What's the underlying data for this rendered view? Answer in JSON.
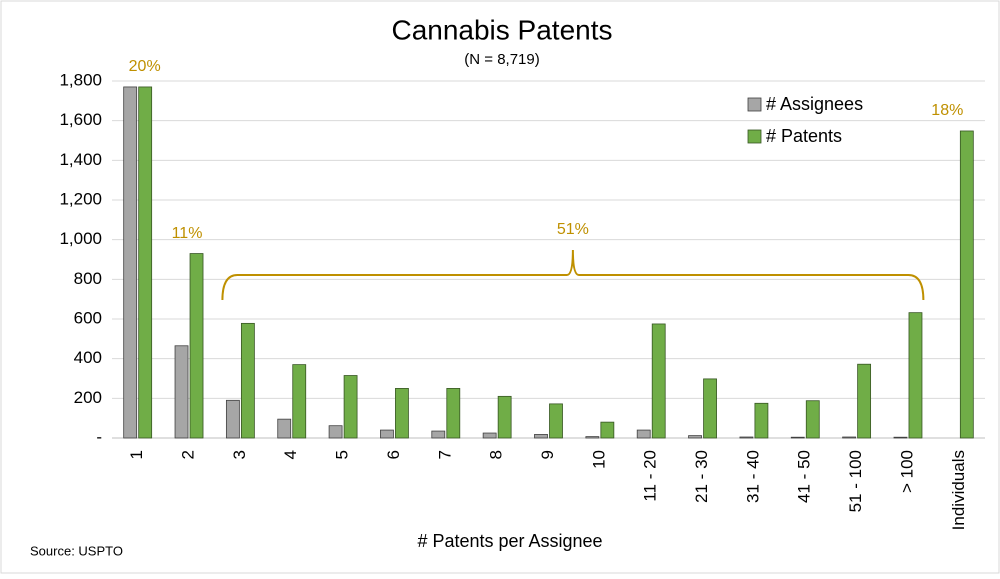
{
  "chart_data": {
    "type": "bar",
    "title": "Cannabis Patents",
    "subtitle": "(N = 8,719)",
    "x_label": "# Patents per Assignee",
    "source": "Source: USPTO",
    "categories": [
      "1",
      "2",
      "3",
      "4",
      "5",
      "6",
      "7",
      "8",
      "9",
      "10",
      "11 - 20",
      "21 - 30",
      "31 - 40",
      "41 - 50",
      "51 - 100",
      "> 100",
      "Individuals"
    ],
    "series": [
      {
        "name": "# Assignees",
        "color": "#a6a6a6",
        "values": [
          1770,
          465,
          190,
          95,
          62,
          40,
          35,
          25,
          18,
          7,
          40,
          12,
          5,
          4,
          5,
          4,
          null
        ]
      },
      {
        "name": "# Patents",
        "color": "#70ad47",
        "values": [
          1770,
          930,
          578,
          370,
          315,
          250,
          250,
          210,
          172,
          80,
          575,
          298,
          175,
          188,
          372,
          632,
          1548
        ]
      }
    ],
    "ylim": [
      0,
      1800
    ],
    "yticks": [
      {
        "value": 0,
        "label": "-"
      },
      200,
      400,
      600,
      800,
      {
        "value": 1000,
        "label": "1,000"
      },
      {
        "value": 1200,
        "label": "1,200"
      },
      {
        "value": 1400,
        "label": "1,400"
      },
      {
        "value": 1600,
        "label": "1,600"
      },
      {
        "value": 1800,
        "label": "1,800"
      }
    ],
    "grid": true,
    "legend": "upper right",
    "annotations": [
      "20%",
      "11%",
      "51%",
      "18%"
    ]
  }
}
